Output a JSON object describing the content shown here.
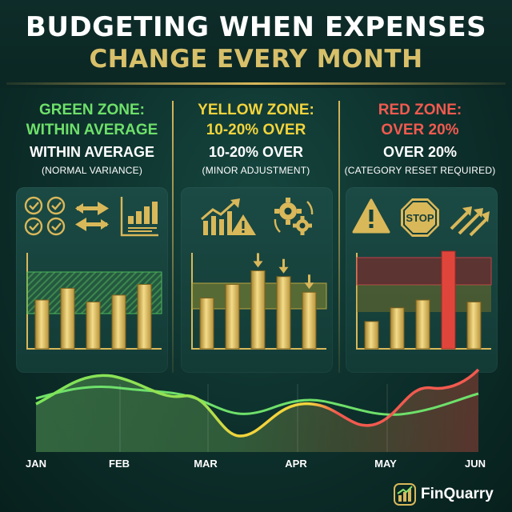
{
  "header": {
    "title_line1": "BUDGETING WHEN EXPENSES",
    "title_line2": "CHANGE EVERY MONTH"
  },
  "zones": [
    {
      "heading": "GREEN ZONE:",
      "subheading": "WITHIN AVERAGE",
      "label": "WITHIN AVERAGE",
      "note": "(NORMAL VARIANCE)",
      "color": "#6ee06a",
      "icons": [
        "checklist-icon",
        "swap-arrows-icon",
        "budget-chart-icon"
      ],
      "bars": [
        0.5,
        0.62,
        0.48,
        0.55,
        0.66
      ]
    },
    {
      "heading": "YELLOW ZONE:",
      "subheading": "10-20% OVER",
      "label": "10-20% OVER",
      "note": "(MINOR ADJUSTMENT)",
      "color": "#f2d43c",
      "icons": [
        "trend-warning-icon",
        "gears-cycle-icon"
      ],
      "bars": [
        0.52,
        0.66,
        0.8,
        0.74,
        0.58
      ]
    },
    {
      "heading": "RED ZONE:",
      "subheading": "OVER 20%",
      "label": "OVER 20%",
      "note": "(CATEGORY RESET REQUIRED)",
      "color": "#f25a4f",
      "icons": [
        "warning-triangle-icon",
        "stop-sign-icon",
        "arrows-up-icon"
      ],
      "bars": [
        0.28,
        0.42,
        0.5,
        1.0,
        0.48
      ]
    }
  ],
  "trend": {
    "months": [
      "JAN",
      "FEB",
      "MAR",
      "APR",
      "MAY",
      "JUN"
    ]
  },
  "brand": {
    "name": "FinQuarry"
  },
  "colors": {
    "gold": "#d9b85a",
    "green": "#6ee06a",
    "yellow": "#f2d43c",
    "red": "#f25a4f",
    "background": "#0d2f2b"
  }
}
